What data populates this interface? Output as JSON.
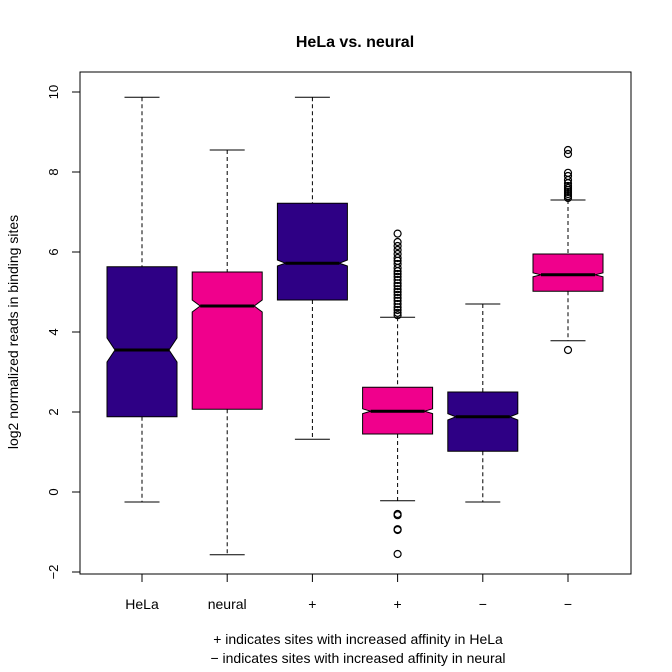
{
  "chart_data": {
    "type": "boxplot",
    "title": "HeLa vs. neural",
    "xlabel": "",
    "ylabel": "log2 normalized reads in binding sites",
    "ylim": [
      -2,
      10
    ],
    "yticks": [
      -2,
      0,
      2,
      4,
      6,
      8,
      10
    ],
    "notched": true,
    "categories": [
      "HeLa",
      "neural",
      "+",
      "+",
      "−",
      "−"
    ],
    "colors": {
      "hela": "#2e0085",
      "neural": "#f0008c"
    },
    "boxes": [
      {
        "label": "HeLa",
        "color": "#2e0085",
        "whisker_low": -0.25,
        "q1": 1.88,
        "median": 3.55,
        "q3": 5.63,
        "whisker_high": 9.87,
        "notch": [
          3.25,
          3.85
        ],
        "outliers": []
      },
      {
        "label": "neural",
        "color": "#f0008c",
        "whisker_low": -1.57,
        "q1": 2.07,
        "median": 4.65,
        "q3": 5.5,
        "whisker_high": 8.55,
        "notch": [
          4.5,
          4.8
        ],
        "outliers": []
      },
      {
        "label": "+",
        "color": "#2e0085",
        "whisker_low": 1.32,
        "q1": 4.8,
        "median": 5.72,
        "q3": 7.22,
        "whisker_high": 9.87,
        "notch": [
          5.65,
          5.8
        ],
        "outliers": []
      },
      {
        "label": "+",
        "color": "#f0008c",
        "whisker_low": -0.22,
        "q1": 1.45,
        "median": 2.02,
        "q3": 2.62,
        "whisker_high": 4.37,
        "notch": [
          1.96,
          2.08
        ],
        "outliers": [
          -1.55,
          -0.95,
          -0.93,
          -0.58,
          -0.55,
          4.42,
          4.48,
          4.55,
          4.62,
          4.7,
          4.78,
          4.85,
          4.93,
          5.0,
          5.07,
          5.15,
          5.22,
          5.3,
          5.38,
          5.45,
          5.52,
          5.6,
          5.7,
          5.78,
          5.85,
          5.95,
          6.05,
          6.15,
          6.25,
          6.46
        ]
      },
      {
        "label": "−",
        "color": "#2e0085",
        "whisker_low": -0.25,
        "q1": 1.02,
        "median": 1.88,
        "q3": 2.5,
        "whisker_high": 4.7,
        "notch": [
          1.8,
          1.96
        ],
        "outliers": []
      },
      {
        "label": "−",
        "color": "#f0008c",
        "whisker_low": 3.78,
        "q1": 5.02,
        "median": 5.43,
        "q3": 5.95,
        "whisker_high": 7.3,
        "notch": [
          5.38,
          5.48
        ],
        "outliers": [
          3.55,
          7.35,
          7.4,
          7.45,
          7.5,
          7.55,
          7.6,
          7.65,
          7.72,
          7.8,
          7.9,
          7.98,
          8.45,
          8.55
        ]
      }
    ],
    "footnotes": [
      "+ indicates sites with increased affinity in HeLa",
      "− indicates sites with increased affinity in neural"
    ]
  }
}
